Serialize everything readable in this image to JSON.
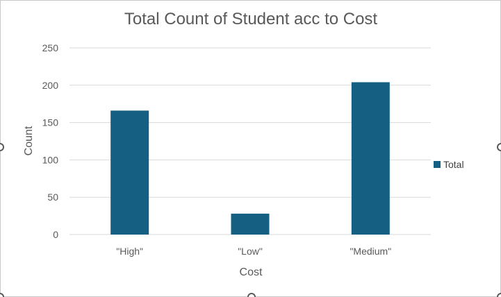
{
  "chart_data": {
    "type": "bar",
    "title": "Total Count of Student acc to Cost",
    "xlabel": "Cost",
    "ylabel": "Count",
    "categories": [
      "\"High\"",
      "\"Low\"",
      "\"Medium\""
    ],
    "series": [
      {
        "name": "Total",
        "values": [
          166,
          28,
          204
        ],
        "color": "#156082"
      }
    ],
    "ylim": [
      0,
      250
    ],
    "yticks": [
      0,
      50,
      100,
      150,
      200,
      250
    ],
    "grid": true,
    "legend_position": "right"
  }
}
